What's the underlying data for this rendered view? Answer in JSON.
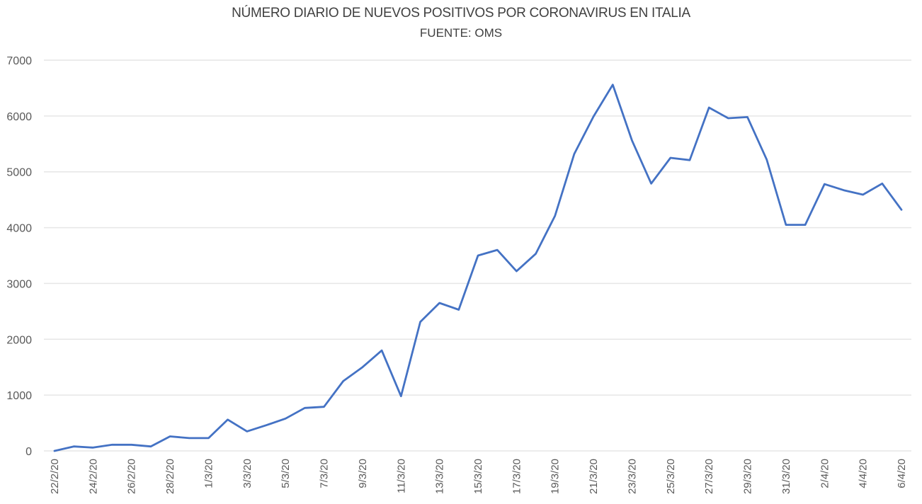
{
  "chart_data": {
    "type": "line",
    "title": "NÚMERO DIARIO DE NUEVOS POSITIVOS POR CORONAVIRUS EN ITALIA",
    "subtitle": "FUENTE: OMS",
    "xlabel": "",
    "ylabel": "",
    "ylim": [
      0,
      7000
    ],
    "yticks": [
      0,
      1000,
      2000,
      3000,
      4000,
      5000,
      6000,
      7000
    ],
    "grid": true,
    "legend": "none",
    "line_color": "#4472C4",
    "gridline_color": "#E6E6E6",
    "x": [
      "22/2/20",
      "23/2/20",
      "24/2/20",
      "25/2/20",
      "26/2/20",
      "27/2/20",
      "28/2/20",
      "29/2/20",
      "1/3/20",
      "2/3/20",
      "3/3/20",
      "4/3/20",
      "5/3/20",
      "6/3/20",
      "7/3/20",
      "8/3/20",
      "9/3/20",
      "10/3/20",
      "11/3/20",
      "12/3/20",
      "13/3/20",
      "14/3/20",
      "15/3/20",
      "16/3/20",
      "17/3/20",
      "18/3/20",
      "19/3/20",
      "20/3/20",
      "21/3/20",
      "22/3/20",
      "23/3/20",
      "24/3/20",
      "25/3/20",
      "26/3/20",
      "27/3/20",
      "28/3/20",
      "29/3/20",
      "30/3/20",
      "31/3/20",
      "1/4/20",
      "2/4/20",
      "3/4/20",
      "4/4/20",
      "5/4/20",
      "6/4/20"
    ],
    "xtick_labels": [
      "22/2/20",
      "24/2/20",
      "26/2/20",
      "28/2/20",
      "1/3/20",
      "3/3/20",
      "5/3/20",
      "7/3/20",
      "9/3/20",
      "11/3/20",
      "13/3/20",
      "15/3/20",
      "17/3/20",
      "19/3/20",
      "21/3/20",
      "23/3/20",
      "25/3/20",
      "27/3/20",
      "29/3/20",
      "31/3/20",
      "2/4/20",
      "4/4/20",
      "6/4/20"
    ],
    "series": [
      {
        "name": "Nuevos positivos",
        "values": [
          0,
          80,
          60,
          110,
          110,
          80,
          260,
          230,
          230,
          560,
          350,
          460,
          580,
          770,
          790,
          1250,
          1500,
          1800,
          980,
          2310,
          2650,
          2530,
          3500,
          3600,
          3220,
          3530,
          4210,
          5320,
          5990,
          6560,
          5560,
          4790,
          5250,
          5210,
          6150,
          5960,
          5980,
          5220,
          4050,
          4050,
          4780,
          4670,
          4590,
          4790,
          4320
        ]
      }
    ]
  }
}
